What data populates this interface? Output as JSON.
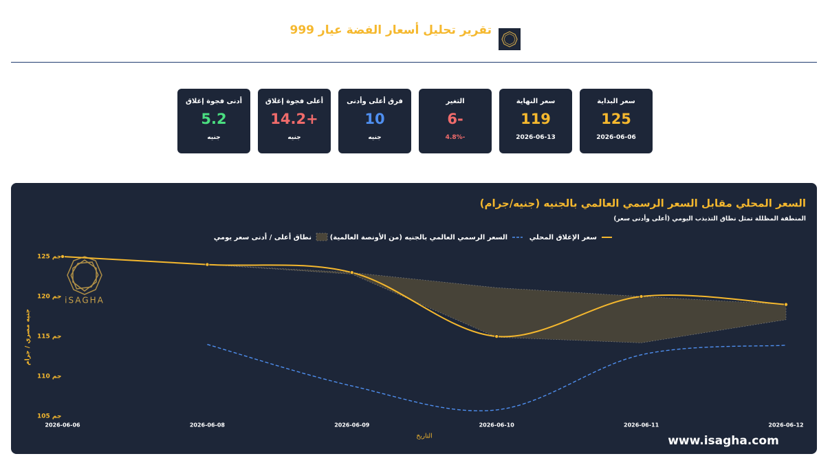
{
  "header": {
    "title": "تقرير تحليل أسعار الفضة عيار 999"
  },
  "kpis": [
    {
      "label": "سعر البداية",
      "value": "125",
      "sub": "2026-06-06",
      "color": "#f5b82e",
      "sub_color": "#ffffff"
    },
    {
      "label": "سعر النهاية",
      "value": "119",
      "sub": "2026-06-13",
      "color": "#f5b82e",
      "sub_color": "#ffffff"
    },
    {
      "label": "التغير",
      "value": "-6",
      "sub": "-4.8%",
      "color": "#f06b6b",
      "sub_color": "#f06b6b"
    },
    {
      "label": "فرق أعلى وأدنى",
      "value": "10",
      "sub": "جنيه",
      "color": "#4f8ff0",
      "sub_color": "#ffffff"
    },
    {
      "label": "أعلى فجوة إغلاق",
      "value": "+14.2",
      "sub": "جنيه",
      "color": "#f06b6b",
      "sub_color": "#ffffff"
    },
    {
      "label": "أدنى فجوة إغلاق",
      "value": "5.2",
      "sub": "جنيه",
      "color": "#4ade80",
      "sub_color": "#ffffff"
    }
  ],
  "chart_data": {
    "type": "line",
    "title": "السعر المحلي مقابل السعر الرسمي العالمي بالجنيه (جنيه/جرام)",
    "subtitle": "المنطقة المظللة تمثل نطاق التذبذب اليومي (أعلى وأدنى سعر)",
    "x_label": "التاريخ",
    "y_label": "جنيه مصري / جرام",
    "categories": [
      "2026-06-06",
      "2026-06-08",
      "2026-06-09",
      "2026-06-10",
      "2026-06-11",
      "2026-06-12"
    ],
    "series": [
      {
        "name": "سعر الإغلاق المحلي",
        "color": "#f5b82e",
        "dashed": false,
        "values": [
          125,
          124,
          123,
          115,
          120,
          119
        ]
      },
      {
        "name": "السعر الرسمي العالمي بالجنيه (من الأونصة العالمية)",
        "color": "#4f8ff0",
        "dashed": true,
        "values": [
          null,
          114,
          108.8,
          105.8,
          112.7,
          113.9
        ]
      }
    ],
    "band": {
      "name": "نطاق أعلى / أدنى سعر يومي",
      "color": "#4a4539",
      "high": [
        125,
        124,
        123,
        121.1,
        120,
        119
      ],
      "low": [
        125,
        124,
        122.8,
        114.9,
        114.2,
        117.1
      ]
    },
    "ylim": [
      104.5,
      125.6
    ],
    "yticks": [
      {
        "value": 105,
        "label": "105 جم"
      },
      {
        "value": 110,
        "label": "110 جم"
      },
      {
        "value": 115,
        "label": "115 جم"
      },
      {
        "value": 120,
        "label": "120 جم"
      },
      {
        "value": 125,
        "label": "125 جم"
      }
    ],
    "watermark": "iSAGHA",
    "footer": "www.isagha.com"
  }
}
